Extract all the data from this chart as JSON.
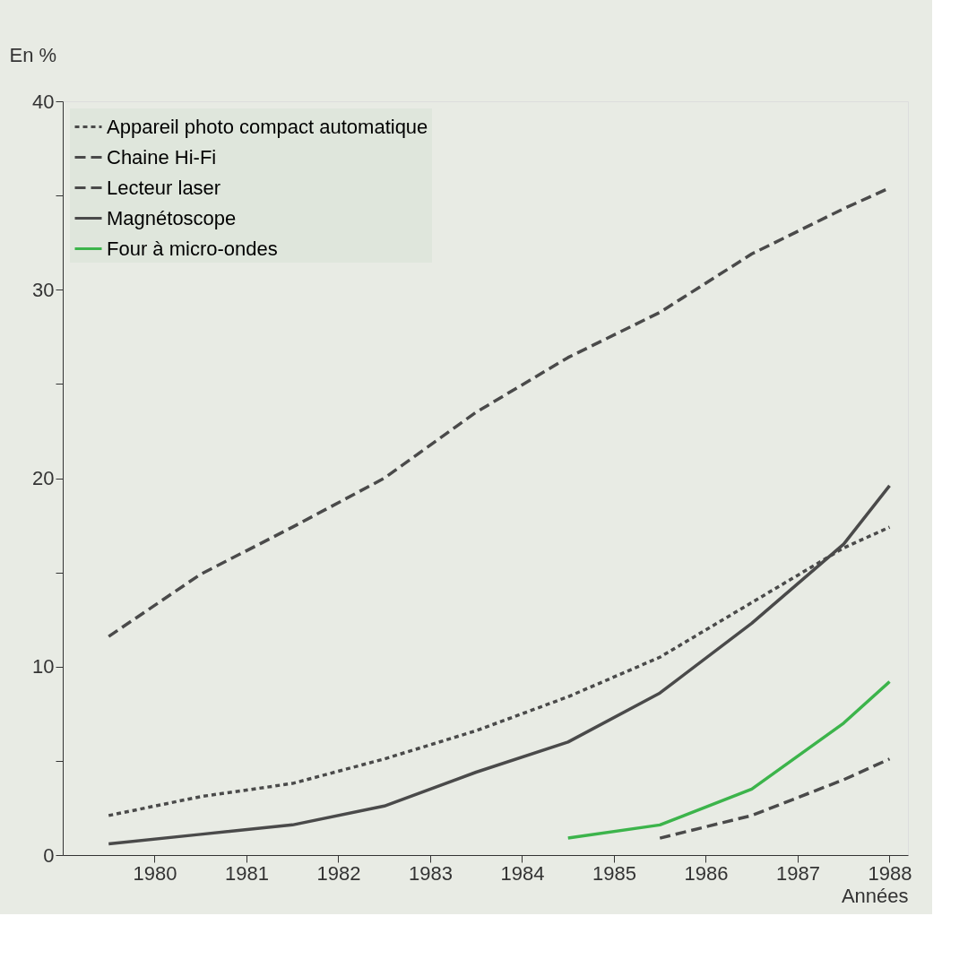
{
  "chart_data": {
    "type": "line",
    "ylabel": "En %",
    "xlabel": "Années",
    "xlim": [
      1979,
      1988.2
    ],
    "xticks": [
      1980,
      1981,
      1982,
      1983,
      1984,
      1985,
      1986,
      1987,
      1988
    ],
    "ylim": [
      0,
      40
    ],
    "yticks": [
      0,
      {
        "value": 5,
        "label": null
      },
      10,
      {
        "value": 15,
        "label": null
      },
      20,
      {
        "value": 25,
        "label": null
      },
      30,
      {
        "value": 35,
        "label": null
      },
      40
    ],
    "grid": false,
    "legend": "top left",
    "marker": "none",
    "series": [
      {
        "name": "Appareil photo compact automatique",
        "color": "#4a4a4a",
        "line_style": "dotted",
        "x": [
          1979.5,
          1980.5,
          1981.5,
          1982.5,
          1983.5,
          1984.5,
          1985.5,
          1986.5,
          1987.5,
          1988
        ],
        "values": [
          2.1,
          3.1,
          3.8,
          5.1,
          6.6,
          8.4,
          10.5,
          13.4,
          16.3,
          17.4
        ]
      },
      {
        "name": "Chaine Hi-Fi",
        "color": "#4a4a4a",
        "line_style": "dashed",
        "x": [
          1979.5,
          1980.5,
          1981.5,
          1982.5,
          1983.5,
          1984.5,
          1985.5,
          1986.5,
          1987.5,
          1988
        ],
        "values": [
          11.6,
          14.9,
          17.4,
          20.0,
          23.5,
          26.4,
          28.8,
          31.9,
          34.3,
          35.4
        ]
      },
      {
        "name": "Lecteur laser",
        "color": "#4a4a4a",
        "line_style": "dashed",
        "x": [
          1985.5,
          1986.5,
          1987.5,
          1988
        ],
        "values": [
          0.9,
          2.1,
          4.0,
          5.1
        ]
      },
      {
        "name": "Magnétoscope",
        "color": "#4a4a4a",
        "line_style": "solid",
        "x": [
          1979.5,
          1980.5,
          1981.5,
          1982.5,
          1983.5,
          1984.5,
          1985.5,
          1986.5,
          1987.5,
          1988
        ],
        "values": [
          0.6,
          1.1,
          1.6,
          2.6,
          4.4,
          6.0,
          8.6,
          12.3,
          16.5,
          19.6
        ]
      },
      {
        "name": "Four à micro-ondes",
        "color": "#3cb44b",
        "line_style": "solid",
        "x": [
          1984.5,
          1985.5,
          1986.5,
          1987.5,
          1988
        ],
        "values": [
          0.9,
          1.6,
          3.5,
          7.0,
          9.2
        ]
      }
    ]
  }
}
